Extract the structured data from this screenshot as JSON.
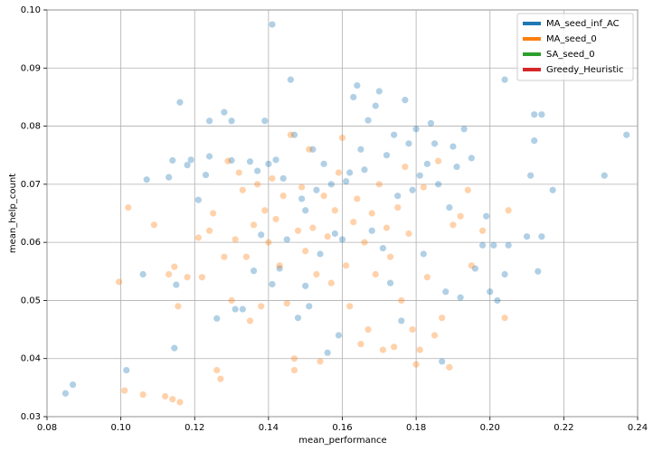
{
  "chart_data": {
    "type": "scatter",
    "xlabel": "mean_performance",
    "ylabel": "mean_help_count",
    "xlim": [
      0.08,
      0.24
    ],
    "ylim": [
      0.03,
      0.1
    ],
    "xticks": [
      0.08,
      {
        "value": 0.1,
        "label": "0.10"
      },
      0.12,
      0.14,
      0.16,
      0.18,
      {
        "value": 0.2,
        "label": "0.20"
      },
      0.22,
      0.24
    ],
    "yticks": [
      0.03,
      0.04,
      0.05,
      0.06,
      0.07,
      0.08,
      0.09,
      {
        "value": 0.1,
        "label": "0.10"
      }
    ],
    "grid": true,
    "legend": "upper right",
    "series": [
      {
        "name": "MA_seed_inf_AC",
        "color": "#1f77b4",
        "x": [
          0.085,
          0.087,
          0.1015,
          0.106,
          0.107,
          0.113,
          0.114,
          0.1145,
          0.115,
          0.116,
          0.118,
          0.119,
          0.121,
          0.123,
          0.124,
          0.124,
          0.126,
          0.128,
          0.13,
          0.13,
          0.131,
          0.133,
          0.135,
          0.136,
          0.137,
          0.138,
          0.139,
          0.14,
          0.141,
          0.141,
          0.142,
          0.143,
          0.144,
          0.145,
          0.146,
          0.147,
          0.148,
          0.149,
          0.15,
          0.15,
          0.151,
          0.152,
          0.153,
          0.154,
          0.155,
          0.156,
          0.157,
          0.158,
          0.159,
          0.16,
          0.161,
          0.162,
          0.163,
          0.164,
          0.165,
          0.166,
          0.167,
          0.168,
          0.169,
          0.17,
          0.171,
          0.172,
          0.173,
          0.174,
          0.175,
          0.176,
          0.177,
          0.178,
          0.179,
          0.18,
          0.181,
          0.182,
          0.183,
          0.184,
          0.185,
          0.186,
          0.187,
          0.188,
          0.189,
          0.19,
          0.191,
          0.192,
          0.193,
          0.195,
          0.196,
          0.198,
          0.199,
          0.2,
          0.201,
          0.202,
          0.204,
          0.204,
          0.205,
          0.21,
          0.211,
          0.212,
          0.212,
          0.213,
          0.214,
          0.214,
          0.217,
          0.231,
          0.237
        ],
        "values": [
          0.034,
          0.0355,
          0.038,
          0.0545,
          0.0708,
          0.0712,
          0.0741,
          0.0418,
          0.0527,
          0.0841,
          0.0733,
          0.0742,
          0.0673,
          0.0716,
          0.0809,
          0.0748,
          0.0469,
          0.0824,
          0.0809,
          0.0741,
          0.0485,
          0.0485,
          0.0739,
          0.0551,
          0.0723,
          0.0613,
          0.0809,
          0.0735,
          0.0975,
          0.0528,
          0.0742,
          0.0555,
          0.071,
          0.0605,
          0.088,
          0.0785,
          0.047,
          0.0675,
          0.0655,
          0.0525,
          0.049,
          0.076,
          0.069,
          0.058,
          0.0735,
          0.041,
          0.07,
          0.0615,
          0.044,
          0.0605,
          0.0705,
          0.072,
          0.085,
          0.087,
          0.076,
          0.0725,
          0.081,
          0.062,
          0.0835,
          0.086,
          0.059,
          0.075,
          0.053,
          0.0785,
          0.068,
          0.0465,
          0.0845,
          0.077,
          0.069,
          0.0795,
          0.0715,
          0.058,
          0.0735,
          0.0805,
          0.077,
          0.07,
          0.0395,
          0.0515,
          0.066,
          0.0765,
          0.073,
          0.0505,
          0.0795,
          0.0745,
          0.0555,
          0.0595,
          0.0645,
          0.0515,
          0.0595,
          0.05,
          0.088,
          0.0545,
          0.0595,
          0.061,
          0.0715,
          0.082,
          0.0775,
          0.055,
          0.061,
          0.082,
          0.069,
          0.0715,
          0.0785
        ]
      },
      {
        "name": "MA_seed_0",
        "color": "#ff7f0e",
        "x": [
          0.0995,
          0.101,
          0.102,
          0.106,
          0.109,
          0.112,
          0.113,
          0.114,
          0.1145,
          0.1155,
          0.116,
          0.118,
          0.121,
          0.122,
          0.124,
          0.125,
          0.126,
          0.127,
          0.128,
          0.129,
          0.13,
          0.131,
          0.132,
          0.133,
          0.134,
          0.135,
          0.136,
          0.137,
          0.138,
          0.139,
          0.14,
          0.141,
          0.142,
          0.143,
          0.144,
          0.145,
          0.146,
          0.147,
          0.147,
          0.148,
          0.149,
          0.15,
          0.151,
          0.152,
          0.153,
          0.154,
          0.155,
          0.156,
          0.157,
          0.158,
          0.159,
          0.16,
          0.161,
          0.162,
          0.163,
          0.164,
          0.165,
          0.166,
          0.167,
          0.168,
          0.169,
          0.17,
          0.171,
          0.172,
          0.173,
          0.174,
          0.175,
          0.176,
          0.177,
          0.178,
          0.179,
          0.18,
          0.181,
          0.182,
          0.183,
          0.185,
          0.186,
          0.187,
          0.189,
          0.19,
          0.192,
          0.194,
          0.195,
          0.198,
          0.204,
          0.205
        ],
        "values": [
          0.0532,
          0.0345,
          0.066,
          0.0338,
          0.063,
          0.0335,
          0.0545,
          0.033,
          0.0558,
          0.049,
          0.0325,
          0.054,
          0.0608,
          0.054,
          0.062,
          0.065,
          0.038,
          0.0365,
          0.0575,
          0.074,
          0.05,
          0.0605,
          0.072,
          0.069,
          0.0575,
          0.0465,
          0.063,
          0.07,
          0.049,
          0.0655,
          0.06,
          0.071,
          0.064,
          0.056,
          0.068,
          0.0495,
          0.0785,
          0.04,
          0.038,
          0.062,
          0.0695,
          0.0585,
          0.076,
          0.0625,
          0.0545,
          0.0395,
          0.068,
          0.061,
          0.053,
          0.0655,
          0.072,
          0.078,
          0.056,
          0.049,
          0.0635,
          0.0675,
          0.0425,
          0.06,
          0.045,
          0.065,
          0.0545,
          0.07,
          0.0415,
          0.0625,
          0.0575,
          0.042,
          0.066,
          0.05,
          0.073,
          0.0615,
          0.045,
          0.039,
          0.0415,
          0.0695,
          0.054,
          0.044,
          0.074,
          0.047,
          0.0385,
          0.063,
          0.0645,
          0.069,
          0.056,
          0.062,
          0.047,
          0.0655
        ]
      },
      {
        "name": "SA_seed_0",
        "color": "#2ca02c",
        "x": [],
        "values": []
      },
      {
        "name": "Greedy_Heuristic",
        "color": "#d62728",
        "x": [],
        "values": []
      }
    ]
  }
}
